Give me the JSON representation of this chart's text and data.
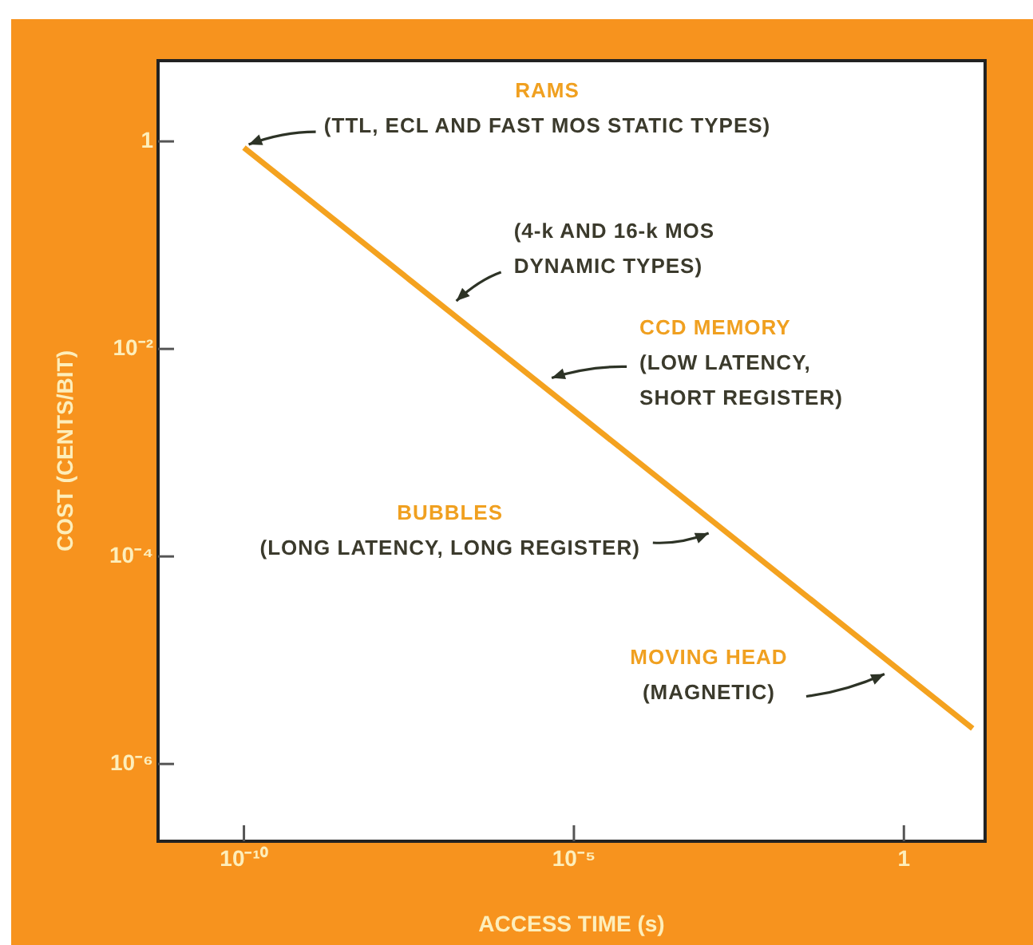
{
  "chart_data": {
    "type": "line",
    "xlabel": "ACCESS TIME (s)",
    "ylabel": "COST (CENTS/BIT)",
    "log": "xy",
    "grid": false,
    "legend": false,
    "marker": "none",
    "line_style": "solid",
    "xlim": [
      5e-12,
      17
    ],
    "ylim": [
      1.8e-07,
      6
    ],
    "xticks": [
      {
        "value": 1e-10,
        "label": "10⁻¹⁰"
      },
      {
        "value": 1e-05,
        "label": "10⁻⁵"
      },
      1
    ],
    "yticks": [
      1,
      {
        "value": 0.01,
        "label": "10⁻²"
      },
      {
        "value": 0.0001,
        "label": "10⁻⁴"
      },
      {
        "value": 1e-06,
        "label": "10⁻⁶"
      }
    ],
    "series": [
      {
        "color": "#f4a21f",
        "x": [
          1e-10,
          11
        ],
        "values": [
          0.87,
          2.2e-06
        ]
      }
    ],
    "annotations": [
      {
        "text": "RAMS\n(TTL, ECL AND FAST MOS STATIC TYPES)",
        "x": 1e-10,
        "y": 0.87
      },
      {
        "text": "(4-k AND 16-k MOS\nDYNAMIC TYPES)",
        "x": 1.4e-07,
        "y": 0.027
      },
      {
        "text": "CCD MEMORY\n(LOW LATENCY,\nSHORT REGISTER)",
        "x": 3.9e-06,
        "y": 0.0049
      },
      {
        "text": "BUBBLES\n(LONG LATENCY, LONG REGISTER)",
        "x": 0.0013,
        "y": 0.00018
      },
      {
        "text": "MOVING HEAD\n(MAGNETIC)",
        "x": 0.6,
        "y": 7.9e-06
      }
    ]
  }
}
